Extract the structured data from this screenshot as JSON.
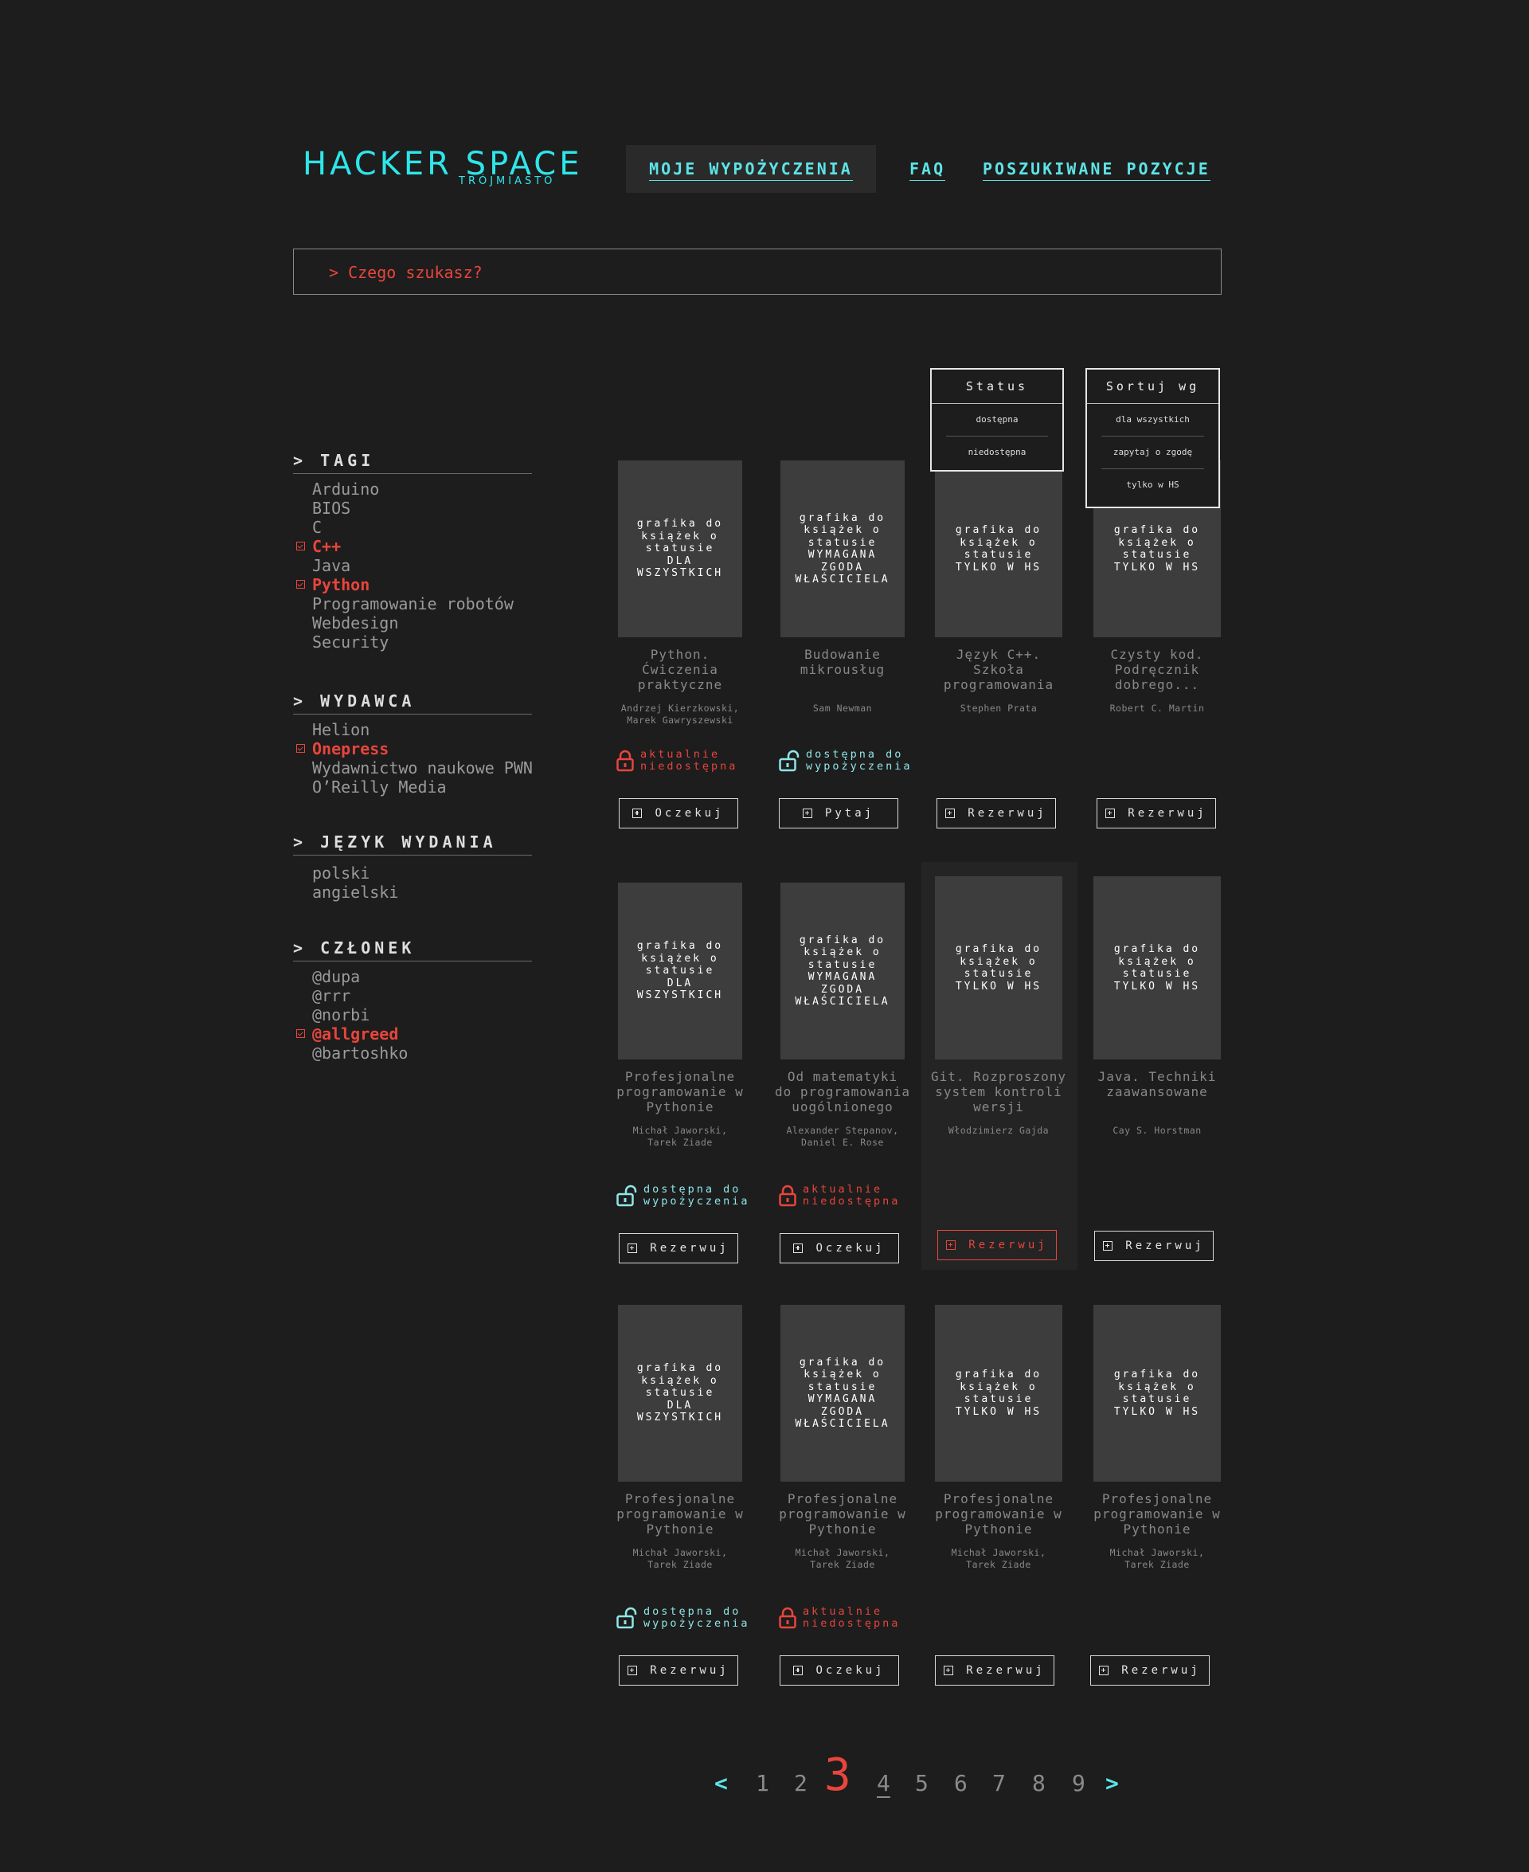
{
  "header": {
    "logo_main": "HACKER SPACE",
    "logo_sub": "TRÓJMIASTO",
    "nav": [
      "MOJE WYPOŻYCZENIA",
      "FAQ",
      "POSZUKIWANE POZYCJE"
    ]
  },
  "search": {
    "placeholder": "> Czego szukasz?"
  },
  "filters": {
    "tags": {
      "title": "> TAGI",
      "items": [
        {
          "label": "Arduino",
          "selected": false
        },
        {
          "label": "BIOS",
          "selected": false
        },
        {
          "label": "C",
          "selected": false
        },
        {
          "label": "C++",
          "selected": true
        },
        {
          "label": "Java",
          "selected": false
        },
        {
          "label": "Python",
          "selected": true
        },
        {
          "label": "Programowanie robotów",
          "selected": false
        },
        {
          "label": "Webdesign",
          "selected": false
        },
        {
          "label": "Security",
          "selected": false
        }
      ]
    },
    "publisher": {
      "title": "> WYDAWCA",
      "items": [
        {
          "label": "Helion",
          "selected": false
        },
        {
          "label": "Onepress",
          "selected": true
        },
        {
          "label": "Wydawnictwo naukowe PWN",
          "selected": false
        },
        {
          "label": "O’Reilly Media",
          "selected": false
        }
      ]
    },
    "language": {
      "title": "> JĘZYK WYDANIA",
      "items": [
        {
          "label": "polski",
          "selected": false
        },
        {
          "label": "angielski",
          "selected": false
        }
      ]
    },
    "member": {
      "title": "> CZŁONEK",
      "items": [
        {
          "label": "@dupa",
          "selected": false
        },
        {
          "label": "@rrr",
          "selected": false
        },
        {
          "label": "@norbi",
          "selected": false
        },
        {
          "label": "@allgreed",
          "selected": true
        },
        {
          "label": "@bartoshko",
          "selected": false
        }
      ]
    }
  },
  "dropdowns": {
    "status": {
      "label": "Status",
      "options": [
        "dostępna",
        "niedostępna"
      ]
    },
    "sort": {
      "label": "Sortuj wg",
      "options": [
        "dla wszystkich",
        "zapytaj o zgodę",
        "tylko w HS"
      ]
    }
  },
  "books": [
    {
      "cover": "grafika do\nksiążek o\nstatusie\nDLA\nWSZYSTKICH",
      "title": "Python.\nĆwiczenia\npraktyczne",
      "author": "Andrzej Kierzkowski,\nMarek Gawryszewski",
      "status": "aktualnie\nniedostępna",
      "status_type": "unavailable",
      "button": "Oczekuj"
    },
    {
      "cover": "grafika do\nksiążek o\nstatusie\nWYMAGANA\nZGODA\nWŁAŚCICIELA",
      "title": "Budowanie\nmikrousług",
      "author": "Sam Newman",
      "status": "dostępna do\nwypożyczenia",
      "status_type": "available",
      "button": "Pytaj"
    },
    {
      "cover": "grafika do\nksiążek o\nstatusie\nTYLKO W HS",
      "title": "Język C++.\nSzkoła\nprogramowania",
      "author": "Stephen Prata",
      "status": "",
      "status_type": "none",
      "button": "Rezerwuj"
    },
    {
      "cover": "grafika do\nksiążek o\nstatusie\nTYLKO W HS",
      "title": "Czysty kod.\nPodręcznik\ndobrego...",
      "author": "Robert C. Martin",
      "status": "",
      "status_type": "none",
      "button": "Rezerwuj"
    },
    {
      "cover": "grafika do\nksiążek o\nstatusie\nDLA\nWSZYSTKICH",
      "title": "Profesjonalne\nprogramowanie w\nPythonie",
      "author": "Michał Jaworski,\nTarek Ziade",
      "status": "dostępna do\nwypożyczenia",
      "status_type": "available",
      "button": "Rezerwuj"
    },
    {
      "cover": "grafika do\nksiążek o\nstatusie\nWYMAGANA\nZGODA\nWŁAŚCICIELA",
      "title": "Od matematyki\ndo programowania\nuogólnionego",
      "author": "Alexander Stepanov,\nDaniel E. Rose",
      "status": "aktualnie\nniedostępna",
      "status_type": "unavailable",
      "button": "Oczekuj"
    },
    {
      "cover": "grafika do\nksiążek o\nstatusie\nTYLKO W HS",
      "title": "Git. Rozproszony\nsystem kontroli\nwersji",
      "author": "Włodzimierz Gajda",
      "status": "",
      "status_type": "none",
      "button": "Rezerwuj",
      "highlight": true
    },
    {
      "cover": "grafika do\nksiążek o\nstatusie\nTYLKO W HS",
      "title": "Java. Techniki\nzaawansowane",
      "author": "Cay S. Horstman",
      "status": "",
      "status_type": "none",
      "button": "Rezerwuj"
    },
    {
      "cover": "grafika do\nksiążek o\nstatusie\nDLA\nWSZYSTKICH",
      "title": "Profesjonalne\nprogramowanie w\nPythonie",
      "author": "Michał Jaworski,\nTarek Ziade",
      "status": "dostępna do\nwypożyczenia",
      "status_type": "available",
      "button": "Rezerwuj"
    },
    {
      "cover": "grafika do\nksiążek o\nstatusie\nWYMAGANA\nZGODA\nWŁAŚCICIELA",
      "title": "Profesjonalne\nprogramowanie w\nPythonie",
      "author": "Michał Jaworski,\nTarek Ziade",
      "status": "aktualnie\nniedostępna",
      "status_type": "unavailable",
      "button": "Oczekuj"
    },
    {
      "cover": "grafika do\nksiążek o\nstatusie\nTYLKO W HS",
      "title": "Profesjonalne\nprogramowanie w\nPythonie",
      "author": "Michał Jaworski,\nTarek Ziade",
      "status": "",
      "status_type": "none",
      "button": "Rezerwuj"
    },
    {
      "cover": "grafika do\nksiążek o\nstatusie\nTYLKO W HS",
      "title": "Profesjonalne\nprogramowanie w\nPythonie",
      "author": "Michał Jaworski,\nTarek Ziade",
      "status": "",
      "status_type": "none",
      "button": "Rezerwuj"
    }
  ],
  "pagination": {
    "prev": "<",
    "next": ">",
    "pages": [
      "1",
      "2",
      "3",
      "4",
      "5",
      "6",
      "7",
      "8",
      "9"
    ],
    "current": "3",
    "hovered": "4"
  },
  "colors": {
    "accent": "#2ee6ea",
    "alert": "#e8453c",
    "background": "#1d1d1d",
    "cover": "#3d3d3d"
  },
  "icons": {
    "unavailable": "padlock-closed-icon",
    "available": "padlock-open-icon",
    "button": "plus-square-icon",
    "selected": "checkbox-checked-icon"
  }
}
